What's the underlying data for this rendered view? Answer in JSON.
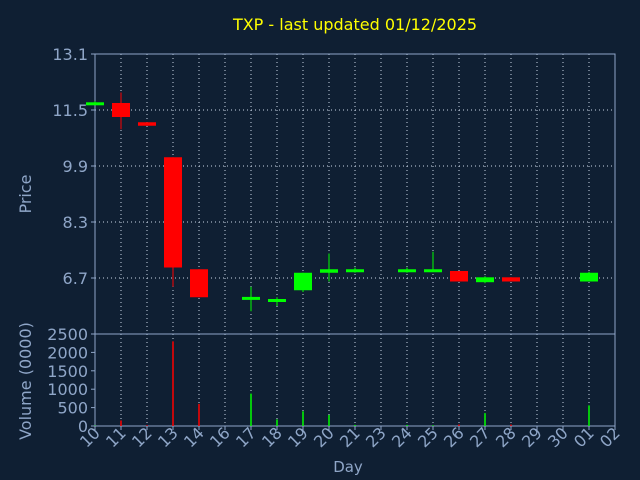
{
  "chart_data": {
    "type": "candlestick",
    "title": "TXP - last updated 01/12/2025",
    "colors": {
      "background": "#0f1f33",
      "frame": "#8fa6c8",
      "text": "#8fa6c8",
      "title": "#ffff00",
      "up": "#00ff00",
      "down": "#ff0000"
    },
    "grid": true,
    "price_panel": {
      "ylabel": "Price",
      "ylim": [
        5.1,
        13.1
      ],
      "yticks": [
        "13.1",
        "11.5",
        "9.9",
        "8.3",
        "6.7"
      ],
      "ytick_values": [
        13.1,
        11.5,
        9.9,
        8.3,
        6.7
      ]
    },
    "volume_panel": {
      "ylabel": "Volume (0000)",
      "ylim": [
        0,
        2500
      ],
      "yticks": [
        "2500",
        "2000",
        "1500",
        "1000",
        "500",
        "0"
      ],
      "ytick_values": [
        2500,
        2000,
        1500,
        1000,
        500,
        0
      ]
    },
    "xlabel": "Day",
    "xticks": [
      "10",
      "11",
      "12",
      "13",
      "14",
      "16",
      "17",
      "18",
      "19",
      "20",
      "21",
      "23",
      "24",
      "25",
      "26",
      "27",
      "28",
      "29",
      "30",
      "01",
      "02"
    ],
    "candles": [
      {
        "day": "10",
        "open": 11.7,
        "close": 11.72,
        "high": 11.75,
        "low": 11.68,
        "volume": 10
      },
      {
        "day": "11",
        "open": 11.7,
        "close": 11.3,
        "high": 12.0,
        "low": 10.95,
        "volume": 150
      },
      {
        "day": "12",
        "open": 11.15,
        "close": 11.05,
        "high": 11.15,
        "low": 11.05,
        "volume": 20
      },
      {
        "day": "13",
        "open": 10.15,
        "close": 7.0,
        "high": 10.15,
        "low": 6.45,
        "volume": 2300
      },
      {
        "day": "14",
        "open": 6.95,
        "close": 6.15,
        "high": 6.95,
        "low": 6.15,
        "volume": 600
      },
      {
        "day": "17",
        "open": 6.1,
        "close": 6.16,
        "high": 6.45,
        "low": 5.75,
        "volume": 880
      },
      {
        "day": "18",
        "open": 6.05,
        "close": 6.1,
        "high": 6.15,
        "low": 5.9,
        "volume": 180
      },
      {
        "day": "19",
        "open": 6.35,
        "close": 6.85,
        "high": 6.85,
        "low": 6.3,
        "volume": 400
      },
      {
        "day": "20",
        "open": 6.85,
        "close": 6.95,
        "high": 7.4,
        "low": 6.6,
        "volume": 300
      },
      {
        "day": "21",
        "open": 6.9,
        "close": 6.95,
        "high": 7.0,
        "low": 6.85,
        "volume": 30
      },
      {
        "day": "24",
        "open": 6.9,
        "close": 6.95,
        "high": 7.0,
        "low": 6.85,
        "volume": 30
      },
      {
        "day": "25",
        "open": 6.92,
        "close": 6.95,
        "high": 7.45,
        "low": 6.9,
        "volume": 20
      },
      {
        "day": "26",
        "open": 6.9,
        "close": 6.6,
        "high": 6.9,
        "low": 6.6,
        "volume": 40
      },
      {
        "day": "27",
        "open": 6.58,
        "close": 6.72,
        "high": 6.75,
        "low": 6.55,
        "volume": 350
      },
      {
        "day": "28",
        "open": 6.72,
        "close": 6.6,
        "high": 6.72,
        "low": 6.6,
        "volume": 40
      },
      {
        "day": "01",
        "open": 6.6,
        "close": 6.85,
        "high": 6.88,
        "low": 6.6,
        "volume": 560
      }
    ]
  }
}
